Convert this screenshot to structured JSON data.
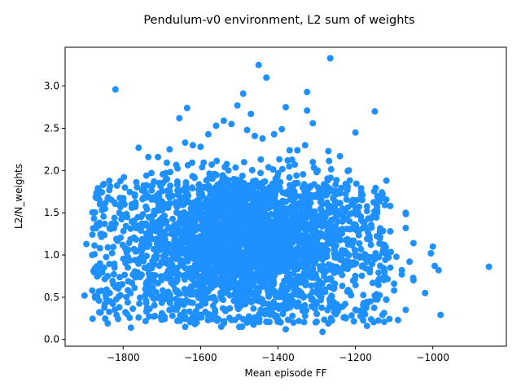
{
  "chart_data": {
    "type": "scatter",
    "title": "Pendulum-v0 environment, L2 sum of weights",
    "xlabel": "Mean episode FF",
    "ylabel": "L2/N_weights",
    "xlim": [
      -1950,
      -810
    ],
    "ylim": [
      -0.08,
      3.46
    ],
    "xticks": [
      -1800,
      -1600,
      -1400,
      -1200,
      -1000
    ],
    "yticks": [
      0.0,
      0.5,
      1.0,
      1.5,
      2.0,
      2.5,
      3.0
    ],
    "xtick_labels": [
      "−1800",
      "−1600",
      "−1400",
      "−1200",
      "−1000"
    ],
    "ytick_labels": [
      "0.0",
      "0.5",
      "1.0",
      "1.5",
      "2.0",
      "2.5",
      "3.0"
    ],
    "grid": false,
    "marker_color": "#1e90ff",
    "points": [
      [
        -1265,
        3.33
      ],
      [
        -1450,
        3.25
      ],
      [
        -1430,
        3.1
      ],
      [
        -1820,
        2.96
      ],
      [
        -1325,
        2.93
      ],
      [
        -1490,
        2.91
      ],
      [
        -1380,
        2.75
      ],
      [
        -1635,
        2.74
      ],
      [
        -1505,
        2.77
      ],
      [
        -1150,
        2.7
      ],
      [
        -1325,
        2.71
      ],
      [
        -1655,
        2.62
      ],
      [
        -1470,
        2.67
      ],
      [
        -1310,
        2.56
      ],
      [
        -1200,
        2.45
      ],
      [
        -1760,
        2.27
      ],
      [
        -1735,
        2.16
      ],
      [
        -1710,
        2.16
      ],
      [
        -1680,
        2.25
      ],
      [
        -1270,
        2.23
      ],
      [
        -1240,
        2.17
      ],
      [
        -1740,
        1.94
      ],
      [
        -1690,
        1.97
      ],
      [
        -1850,
        1.84
      ],
      [
        -1120,
        1.88
      ],
      [
        -1860,
        1.6
      ],
      [
        -1840,
        1.67
      ],
      [
        -1800,
        1.63
      ],
      [
        -1130,
        1.72
      ],
      [
        -1110,
        1.58
      ],
      [
        -1070,
        1.5
      ],
      [
        -1870,
        1.33
      ],
      [
        -1180,
        1.39
      ],
      [
        -1110,
        1.28
      ],
      [
        -1070,
        1.32
      ],
      [
        -1050,
        1.14
      ],
      [
        -1000,
        1.1
      ],
      [
        -1005,
        1.02
      ],
      [
        -1895,
        1.13
      ],
      [
        -855,
        0.86
      ],
      [
        -995,
        0.87
      ],
      [
        -985,
        0.82
      ],
      [
        -1050,
        0.7
      ],
      [
        -1020,
        0.55
      ],
      [
        -1900,
        0.52
      ],
      [
        -1880,
        0.58
      ],
      [
        -1870,
        0.8
      ],
      [
        -980,
        0.29
      ],
      [
        -1090,
        0.23
      ],
      [
        -1130,
        0.29
      ],
      [
        -1170,
        0.16
      ],
      [
        -1285,
        0.09
      ],
      [
        -1380,
        0.12
      ],
      [
        -1500,
        0.15
      ],
      [
        -1640,
        0.15
      ],
      [
        -1780,
        0.14
      ],
      [
        -1840,
        0.19
      ],
      [
        -1070,
        0.35
      ],
      [
        -1100,
        0.66
      ],
      [
        -1080,
        0.77
      ],
      [
        -1060,
        0.92
      ],
      [
        -1130,
        1.03
      ],
      [
        -1150,
        0.95
      ],
      [
        -1160,
        1.12
      ],
      [
        -1190,
        1.29
      ],
      [
        -1200,
        1.36
      ],
      [
        -1170,
        1.52
      ],
      [
        -1210,
        1.63
      ],
      [
        -1220,
        1.81
      ],
      [
        -1240,
        1.73
      ],
      [
        -1260,
        1.76
      ],
      [
        -1280,
        1.83
      ],
      [
        -1300,
        1.98
      ],
      [
        -1310,
        2.1
      ],
      [
        -1330,
        2.3
      ],
      [
        -1350,
        2.24
      ],
      [
        -1370,
        2.24
      ],
      [
        -1390,
        2.49
      ],
      [
        -1410,
        2.43
      ],
      [
        -1440,
        2.38
      ],
      [
        -1460,
        2.41
      ],
      [
        -1480,
        2.48
      ],
      [
        -1520,
        2.55
      ],
      [
        -1540,
        2.59
      ],
      [
        -1560,
        2.53
      ],
      [
        -1580,
        2.43
      ],
      [
        -1600,
        2.28
      ],
      [
        -1620,
        2.3
      ],
      [
        -1640,
        2.33
      ],
      [
        -1660,
        1.83
      ],
      [
        -1680,
        1.68
      ],
      [
        -1700,
        1.53
      ],
      [
        -1720,
        1.48
      ],
      [
        -1750,
        1.66
      ],
      [
        -1770,
        1.7
      ],
      [
        -1790,
        1.45
      ],
      [
        -1810,
        1.5
      ],
      [
        -1830,
        1.37
      ],
      [
        -1850,
        1.24
      ],
      [
        -1860,
        1.08
      ],
      [
        -1880,
        1.0
      ],
      [
        -1860,
        0.9
      ],
      [
        -1840,
        0.75
      ],
      [
        -1820,
        0.62
      ],
      [
        -1810,
        0.38
      ],
      [
        -1790,
        0.3
      ],
      [
        -1760,
        0.26
      ],
      [
        -1740,
        0.33
      ],
      [
        -1720,
        0.48
      ],
      [
        -1700,
        0.31
      ],
      [
        -1680,
        0.35
      ],
      [
        -1660,
        0.22
      ],
      [
        -1620,
        0.27
      ],
      [
        -1600,
        0.29
      ],
      [
        -1570,
        0.24
      ],
      [
        -1540,
        0.19
      ],
      [
        -1520,
        0.23
      ],
      [
        -1480,
        0.2
      ],
      [
        -1460,
        0.26
      ],
      [
        -1430,
        0.21
      ],
      [
        -1400,
        0.24
      ],
      [
        -1360,
        0.2
      ],
      [
        -1330,
        0.28
      ],
      [
        -1300,
        0.21
      ],
      [
        -1270,
        0.19
      ],
      [
        -1250,
        0.3
      ],
      [
        -1230,
        0.26
      ],
      [
        -1200,
        0.35
      ],
      [
        -1180,
        0.41
      ],
      [
        -1150,
        0.52
      ],
      [
        -1120,
        0.47
      ],
      [
        -1100,
        0.58
      ],
      [
        -1080,
        0.82
      ],
      [
        -1110,
        0.85
      ],
      [
        -1140,
        0.79
      ],
      [
        -1170,
        0.98
      ]
    ]
  }
}
